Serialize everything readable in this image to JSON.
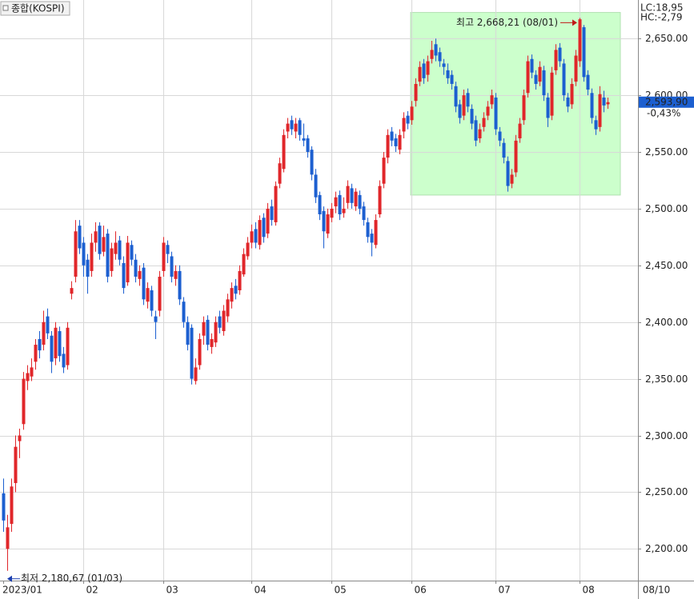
{
  "chart_data": {
    "type": "candlestick",
    "title": "종합(KOSPI)",
    "legend_items": [
      {
        "label": "LC:18,95",
        "color": "#d42020"
      },
      {
        "label": "HC:-2,79",
        "color": "#1c5fd0"
      }
    ],
    "up_color": "#e0262a",
    "down_color": "#1c5fd0",
    "ylim": [
      2172,
      2684
    ],
    "yticks": [
      {
        "value": 2200,
        "label": "2,200.00"
      },
      {
        "value": 2250,
        "label": "2,250.00"
      },
      {
        "value": 2300,
        "label": "2,300.00"
      },
      {
        "value": 2350,
        "label": "2,350.00"
      },
      {
        "value": 2400,
        "label": "2,400.00"
      },
      {
        "value": 2450,
        "label": "2,450.00"
      },
      {
        "value": 2500,
        "label": "2,500.00"
      },
      {
        "value": 2550,
        "label": "2,550.00"
      },
      {
        "value": 2600,
        "label": "2,600.00"
      },
      {
        "value": 2650,
        "label": "2,650.00"
      }
    ],
    "xlim": [
      -0.8,
      158.6
    ],
    "xticks": [
      {
        "value": 0,
        "label": "2023/01"
      },
      {
        "value": 20,
        "label": "02"
      },
      {
        "value": 40,
        "label": "03"
      },
      {
        "value": 62,
        "label": "04"
      },
      {
        "value": 82,
        "label": "05"
      },
      {
        "value": 102,
        "label": "06"
      },
      {
        "value": 123,
        "label": "07"
      },
      {
        "value": 144,
        "label": "08"
      }
    ],
    "end_date_label": "08/10",
    "grid": true,
    "highlight_range": {
      "x": [
        101.8,
        154.2
      ],
      "y": [
        2512,
        2673
      ],
      "color": "#ccffcc"
    },
    "last_price": {
      "value": 2593.9,
      "label": "2,593,90",
      "change": "-0,43%"
    },
    "annotations": [
      {
        "text": "최고 2,668,21 (08/01)",
        "index": 144,
        "value": 2668.21,
        "color": "#c01818"
      },
      {
        "text": "최저 2,180,67 (01/03)",
        "index": 1,
        "value": 2180.67,
        "color": "#1c3fb0"
      }
    ],
    "ohlc": [
      [
        2249,
        2262,
        2215,
        2225
      ],
      [
        2200,
        2230,
        2180.67,
        2219
      ],
      [
        2222,
        2262,
        2215,
        2255
      ],
      [
        2258,
        2300,
        2250,
        2290
      ],
      [
        2295,
        2306,
        2280,
        2300
      ],
      [
        2310,
        2356,
        2305,
        2350
      ],
      [
        2348,
        2362,
        2340,
        2355
      ],
      [
        2352,
        2368,
        2348,
        2360
      ],
      [
        2365,
        2385,
        2358,
        2380
      ],
      [
        2385,
        2392,
        2368,
        2375
      ],
      [
        2380,
        2410,
        2375,
        2400
      ],
      [
        2405,
        2412,
        2385,
        2390
      ],
      [
        2388,
        2392,
        2355,
        2365
      ],
      [
        2368,
        2400,
        2362,
        2395
      ],
      [
        2392,
        2396,
        2365,
        2370
      ],
      [
        2372,
        2378,
        2355,
        2360
      ],
      [
        2362,
        2400,
        2358,
        2395
      ],
      [
        2425,
        2436,
        2420,
        2430
      ],
      [
        2440,
        2490,
        2435,
        2480
      ],
      [
        2485,
        2490,
        2460,
        2465
      ],
      [
        2470,
        2475,
        2440,
        2450
      ],
      [
        2455,
        2460,
        2425,
        2440
      ],
      [
        2445,
        2478,
        2440,
        2470
      ],
      [
        2470,
        2488,
        2462,
        2480
      ],
      [
        2485,
        2488,
        2455,
        2460
      ],
      [
        2462,
        2485,
        2458,
        2475
      ],
      [
        2478,
        2482,
        2435,
        2440
      ],
      [
        2445,
        2470,
        2440,
        2465
      ],
      [
        2460,
        2480,
        2455,
        2470
      ],
      [
        2472,
        2476,
        2450,
        2455
      ],
      [
        2452,
        2458,
        2425,
        2430
      ],
      [
        2435,
        2476,
        2432,
        2470
      ],
      [
        2468,
        2472,
        2450,
        2455
      ],
      [
        2455,
        2460,
        2435,
        2440
      ],
      [
        2438,
        2450,
        2432,
        2445
      ],
      [
        2448,
        2452,
        2415,
        2420
      ],
      [
        2418,
        2435,
        2412,
        2430
      ],
      [
        2428,
        2432,
        2405,
        2410
      ],
      [
        2405,
        2410,
        2385,
        2400
      ],
      [
        2410,
        2445,
        2405,
        2440
      ],
      [
        2445,
        2475,
        2440,
        2470
      ],
      [
        2468,
        2472,
        2452,
        2460
      ],
      [
        2458,
        2462,
        2435,
        2440
      ],
      [
        2438,
        2450,
        2432,
        2445
      ],
      [
        2445,
        2450,
        2415,
        2420
      ],
      [
        2418,
        2422,
        2395,
        2400
      ],
      [
        2400,
        2405,
        2375,
        2380
      ],
      [
        2395,
        2398,
        2345,
        2350
      ],
      [
        2348,
        2368,
        2345,
        2360
      ],
      [
        2362,
        2390,
        2358,
        2385
      ],
      [
        2388,
        2405,
        2380,
        2400
      ],
      [
        2402,
        2406,
        2375,
        2380
      ],
      [
        2378,
        2390,
        2372,
        2385
      ],
      [
        2382,
        2405,
        2378,
        2400
      ],
      [
        2405,
        2410,
        2390,
        2395
      ],
      [
        2392,
        2415,
        2388,
        2410
      ],
      [
        2405,
        2425,
        2400,
        2420
      ],
      [
        2418,
        2435,
        2412,
        2430
      ],
      [
        2432,
        2438,
        2420,
        2425
      ],
      [
        2428,
        2450,
        2424,
        2445
      ],
      [
        2442,
        2465,
        2440,
        2460
      ],
      [
        2458,
        2475,
        2455,
        2470
      ],
      [
        2470,
        2486,
        2465,
        2480
      ],
      [
        2482,
        2488,
        2465,
        2470
      ],
      [
        2468,
        2494,
        2464,
        2490
      ],
      [
        2492,
        2496,
        2470,
        2475
      ],
      [
        2478,
        2505,
        2474,
        2500
      ],
      [
        2502,
        2508,
        2485,
        2490
      ],
      [
        2488,
        2524,
        2485,
        2520
      ],
      [
        2522,
        2545,
        2518,
        2540
      ],
      [
        2535,
        2570,
        2532,
        2565
      ],
      [
        2568,
        2580,
        2562,
        2575
      ],
      [
        2578,
        2582,
        2565,
        2570
      ],
      [
        2568,
        2580,
        2562,
        2575
      ],
      [
        2578,
        2580,
        2560,
        2565
      ],
      [
        2562,
        2575,
        2555,
        2560
      ],
      [
        2562,
        2565,
        2545,
        2550
      ],
      [
        2552,
        2555,
        2525,
        2530
      ],
      [
        2530,
        2535,
        2505,
        2510
      ],
      [
        2512,
        2515,
        2490,
        2495
      ],
      [
        2498,
        2502,
        2465,
        2480
      ],
      [
        2478,
        2500,
        2474,
        2495
      ],
      [
        2492,
        2505,
        2488,
        2500
      ],
      [
        2502,
        2515,
        2496,
        2510
      ],
      [
        2512,
        2516,
        2490,
        2495
      ],
      [
        2496,
        2510,
        2492,
        2500
      ],
      [
        2505,
        2525,
        2500,
        2520
      ],
      [
        2518,
        2522,
        2500,
        2505
      ],
      [
        2502,
        2518,
        2498,
        2515
      ],
      [
        2512,
        2516,
        2495,
        2500
      ],
      [
        2502,
        2506,
        2485,
        2490
      ],
      [
        2488,
        2492,
        2470,
        2475
      ],
      [
        2478,
        2482,
        2458,
        2470
      ],
      [
        2468,
        2495,
        2465,
        2490
      ],
      [
        2495,
        2525,
        2492,
        2520
      ],
      [
        2522,
        2550,
        2518,
        2545
      ],
      [
        2545,
        2570,
        2540,
        2565
      ],
      [
        2568,
        2572,
        2555,
        2560
      ],
      [
        2562,
        2566,
        2550,
        2555
      ],
      [
        2552,
        2570,
        2548,
        2565
      ],
      [
        2568,
        2585,
        2562,
        2580
      ],
      [
        2582,
        2586,
        2570,
        2575
      ],
      [
        2578,
        2595,
        2574,
        2590
      ],
      [
        2595,
        2615,
        2590,
        2610
      ],
      [
        2612,
        2630,
        2608,
        2625
      ],
      [
        2628,
        2632,
        2610,
        2615
      ],
      [
        2618,
        2635,
        2612,
        2630
      ],
      [
        2632,
        2648,
        2628,
        2640
      ],
      [
        2645,
        2650,
        2630,
        2635
      ],
      [
        2638,
        2642,
        2625,
        2630
      ],
      [
        2628,
        2632,
        2618,
        2625
      ],
      [
        2622,
        2628,
        2610,
        2615
      ],
      [
        2618,
        2622,
        2605,
        2610
      ],
      [
        2608,
        2612,
        2585,
        2590
      ],
      [
        2592,
        2596,
        2575,
        2580
      ],
      [
        2582,
        2605,
        2578,
        2600
      ],
      [
        2602,
        2606,
        2585,
        2590
      ],
      [
        2588,
        2592,
        2570,
        2575
      ],
      [
        2578,
        2582,
        2555,
        2560
      ],
      [
        2562,
        2575,
        2558,
        2570
      ],
      [
        2572,
        2585,
        2568,
        2580
      ],
      [
        2582,
        2595,
        2578,
        2590
      ],
      [
        2592,
        2605,
        2588,
        2600
      ],
      [
        2598,
        2602,
        2565,
        2570
      ],
      [
        2568,
        2572,
        2555,
        2560
      ],
      [
        2558,
        2562,
        2540,
        2545
      ],
      [
        2542,
        2546,
        2515,
        2520
      ],
      [
        2522,
        2535,
        2518,
        2530
      ],
      [
        2532,
        2565,
        2528,
        2560
      ],
      [
        2562,
        2580,
        2558,
        2575
      ],
      [
        2578,
        2605,
        2574,
        2600
      ],
      [
        2602,
        2635,
        2598,
        2630
      ],
      [
        2632,
        2636,
        2615,
        2620
      ],
      [
        2618,
        2622,
        2605,
        2610
      ],
      [
        2612,
        2630,
        2608,
        2625
      ],
      [
        2622,
        2626,
        2595,
        2600
      ],
      [
        2598,
        2602,
        2572,
        2580
      ],
      [
        2582,
        2625,
        2578,
        2620
      ],
      [
        2622,
        2645,
        2618,
        2640
      ],
      [
        2642,
        2646,
        2625,
        2630
      ],
      [
        2628,
        2632,
        2595,
        2600
      ],
      [
        2598,
        2602,
        2585,
        2590
      ],
      [
        2592,
        2615,
        2588,
        2610
      ],
      [
        2612,
        2640,
        2608,
        2635
      ],
      [
        2630,
        2668.21,
        2625,
        2667
      ],
      [
        2660,
        2662,
        2612,
        2616
      ],
      [
        2618,
        2622,
        2600,
        2605
      ],
      [
        2602,
        2606,
        2575,
        2580
      ],
      [
        2578,
        2582,
        2565,
        2570
      ],
      [
        2572,
        2608,
        2568,
        2601
      ],
      [
        2598,
        2604,
        2585,
        2591
      ],
      [
        2592,
        2598,
        2588,
        2593.9
      ]
    ]
  }
}
